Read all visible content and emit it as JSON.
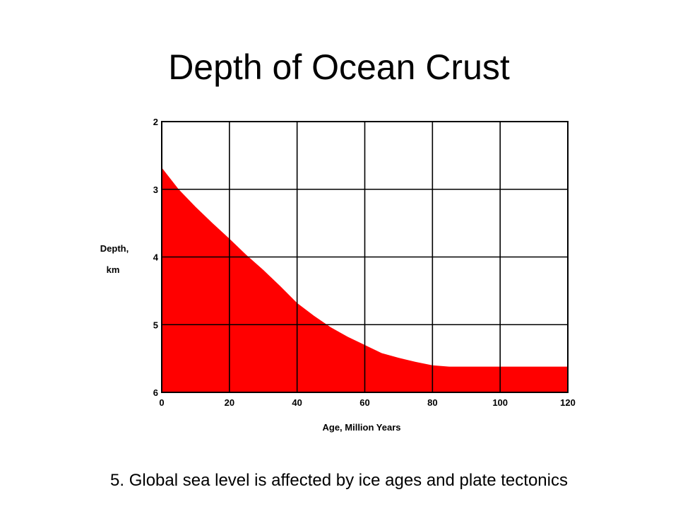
{
  "slide": {
    "title": "Depth of Ocean Crust",
    "caption": "5. Global sea level is affected by ice ages and plate tectonics"
  },
  "chart_data": {
    "type": "area",
    "xlabel": "Age, Million Years",
    "ylabel_lines": [
      "Depth,",
      "km"
    ],
    "x_ticks": [
      0,
      20,
      40,
      60,
      80,
      100,
      120
    ],
    "y_ticks": [
      2,
      3,
      4,
      5,
      6
    ],
    "xlim": [
      0,
      120
    ],
    "ylim": [
      2,
      6
    ],
    "y_inverted": true,
    "grid": true,
    "fill_color": "#ff0000",
    "series": [
      {
        "x": [
          0,
          5,
          10,
          15,
          20,
          25,
          30,
          35,
          40,
          45,
          50,
          55,
          60,
          65,
          70,
          75,
          80,
          85,
          90,
          100,
          110,
          120
        ],
        "y": [
          2.68,
          3.0,
          3.26,
          3.5,
          3.73,
          3.97,
          4.19,
          4.43,
          4.68,
          4.87,
          5.04,
          5.18,
          5.3,
          5.42,
          5.49,
          5.55,
          5.6,
          5.62,
          5.62,
          5.62,
          5.62,
          5.62
        ]
      }
    ]
  }
}
